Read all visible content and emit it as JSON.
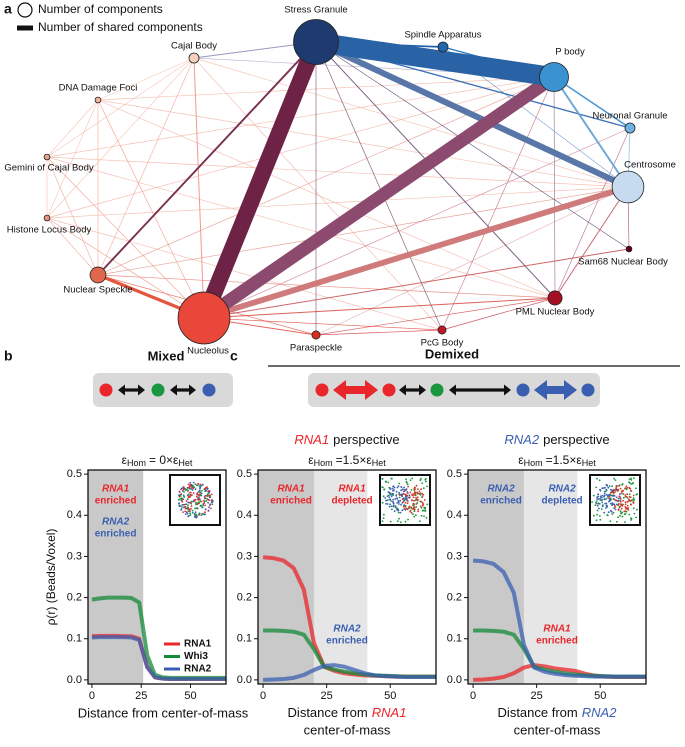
{
  "panel_labels": [
    "a",
    "b",
    "c"
  ],
  "network": {
    "legend": {
      "size": "Number of components",
      "width": "Number of shared components"
    },
    "nodes": [
      {
        "label": "Stress Granule",
        "size": 240,
        "color": "#1f3a6e"
      },
      {
        "label": "Spindle Apparatus",
        "size": 12,
        "color": "#2166ac"
      },
      {
        "label": "P body",
        "size": 100,
        "color": "#3a93d0"
      },
      {
        "label": "Neuronal Granule",
        "size": 12,
        "color": "#6fb3e0"
      },
      {
        "label": "Centrosome",
        "size": 120,
        "color": "#c6dbef"
      },
      {
        "label": "Sam68 Nuclear Body",
        "size": 4,
        "color": "#67001f"
      },
      {
        "label": "PML Nuclear Body",
        "size": 24,
        "color": "#a50f25"
      },
      {
        "label": "PcG Body",
        "size": 8,
        "color": "#c0182b"
      },
      {
        "label": "Paraspeckle",
        "size": 8,
        "color": "#d7301f"
      },
      {
        "label": "Nucleolus",
        "size": 320,
        "color": "#e8473a"
      },
      {
        "label": "Nuclear Speckle",
        "size": 30,
        "color": "#e0664c"
      },
      {
        "label": "Histone Locus Body",
        "size": 4,
        "color": "#e8927a"
      },
      {
        "label": "Gemini of Cajal Body",
        "size": 4,
        "color": "#eaa48e"
      },
      {
        "label": "DNA Damage Foci",
        "size": 4,
        "color": "#f0b49e"
      },
      {
        "label": "Cajal Body",
        "size": 12,
        "color": "#f6cfbf"
      }
    ],
    "edges": [
      {
        "source": 10,
        "target": 11,
        "weight": 1,
        "color": "#f0a090"
      },
      {
        "source": 10,
        "target": 12,
        "weight": 1,
        "color": "#f0a090"
      },
      {
        "source": 10,
        "target": 13,
        "weight": 1,
        "color": "#f0a090"
      },
      {
        "source": 10,
        "target": 14,
        "weight": 1,
        "color": "#f0a090"
      },
      {
        "source": 14,
        "target": 13,
        "weight": 1,
        "color": "#f4bca8"
      },
      {
        "source": 13,
        "target": 12,
        "weight": 1,
        "color": "#f4bca8"
      },
      {
        "source": 12,
        "target": 11,
        "weight": 1,
        "color": "#f4bca8"
      },
      {
        "source": 14,
        "target": 12,
        "weight": 1,
        "color": "#f4bca8"
      },
      {
        "source": 13,
        "target": 11,
        "weight": 1,
        "color": "#f4bca8"
      },
      {
        "source": 14,
        "target": 11,
        "weight": 1,
        "color": "#f4bca8"
      },
      {
        "source": 11,
        "target": 4,
        "weight": 1,
        "color": "#f0b0a0"
      },
      {
        "source": 12,
        "target": 2,
        "weight": 1,
        "color": "#f0b0a0"
      },
      {
        "source": 13,
        "target": 4,
        "weight": 1,
        "color": "#f0b0a0"
      },
      {
        "source": 12,
        "target": 6,
        "weight": 1,
        "color": "#f0b0a0"
      },
      {
        "source": 13,
        "target": 6,
        "weight": 1,
        "color": "#f0b0a0"
      },
      {
        "source": 11,
        "target": 7,
        "weight": 1,
        "color": "#f0b0a0"
      },
      {
        "source": 14,
        "target": 7,
        "weight": 1,
        "color": "#f0b0a0"
      },
      {
        "source": 12,
        "target": 4,
        "weight": 1,
        "color": "#f0b0a0"
      },
      {
        "source": 11,
        "target": 2,
        "weight": 1,
        "color": "#f0b0a0"
      },
      {
        "source": 13,
        "target": 2,
        "weight": 1,
        "color": "#f0b0a0"
      },
      {
        "source": 14,
        "target": 2,
        "weight": 1,
        "color": "#b0a0c0"
      },
      {
        "source": 14,
        "target": 4,
        "weight": 1,
        "color": "#f0b8a8"
      },
      {
        "source": 10,
        "target": 4,
        "weight": 1,
        "color": "#e09080"
      },
      {
        "source": 10,
        "target": 2,
        "weight": 1,
        "color": "#e09080"
      },
      {
        "source": 10,
        "target": 6,
        "weight": 1,
        "color": "#e07060"
      },
      {
        "source": 10,
        "target": 8,
        "weight": 1,
        "color": "#e05040"
      },
      {
        "source": 8,
        "target": 4,
        "weight": 1,
        "color": "#e0a0a0"
      },
      {
        "source": 8,
        "target": 6,
        "weight": 1,
        "color": "#d04040"
      },
      {
        "source": 7,
        "target": 2,
        "weight": 1,
        "color": "#c06070"
      },
      {
        "source": 6,
        "target": 7,
        "weight": 1,
        "color": "#c03040"
      },
      {
        "source": 7,
        "target": 8,
        "weight": 1,
        "color": "#d03040"
      },
      {
        "source": 6,
        "target": 2,
        "weight": 1,
        "color": "#8a5a8a"
      },
      {
        "source": 3,
        "target": 6,
        "weight": 1,
        "color": "#a06080"
      },
      {
        "source": 1,
        "target": 4,
        "weight": 1,
        "color": "#6090c8"
      },
      {
        "source": 4,
        "target": 5,
        "weight": 1,
        "color": "#a04050"
      },
      {
        "source": 9,
        "target": 7,
        "weight": 1,
        "color": "#e04035"
      },
      {
        "source": 9,
        "target": 3,
        "weight": 1,
        "color": "#c8708a"
      },
      {
        "source": 9,
        "target": 13,
        "weight": 1,
        "color": "#f09080"
      },
      {
        "source": 9,
        "target": 12,
        "weight": 1,
        "color": "#f09080"
      },
      {
        "source": 9,
        "target": 11,
        "weight": 1,
        "color": "#f09080"
      },
      {
        "source": 0,
        "target": 7,
        "weight": 1,
        "color": "#6a3a5e"
      },
      {
        "source": 0,
        "target": 8,
        "weight": 1,
        "color": "#6a3a5e"
      },
      {
        "source": 0,
        "target": 5,
        "weight": 1,
        "color": "#4a3260"
      },
      {
        "source": 0,
        "target": 14,
        "weight": 2,
        "color": "#7c7fae"
      },
      {
        "source": 0,
        "target": 6,
        "weight": 2,
        "color": "#5a3a62"
      },
      {
        "source": 9,
        "target": 6,
        "weight": 2,
        "color": "#d43a30"
      },
      {
        "source": 9,
        "target": 5,
        "weight": 2,
        "color": "#c04040"
      },
      {
        "source": 9,
        "target": 8,
        "weight": 2,
        "color": "#e04035"
      },
      {
        "source": 9,
        "target": 14,
        "weight": 2,
        "color": "#f08070"
      },
      {
        "source": 4,
        "target": 6,
        "weight": 2,
        "color": "#c04050"
      },
      {
        "source": 3,
        "target": 4,
        "weight": 2,
        "color": "#90c0e4"
      },
      {
        "source": 0,
        "target": 3,
        "weight": 3,
        "color": "#3a70b4"
      },
      {
        "source": 1,
        "target": 2,
        "weight": 3,
        "color": "#2878be"
      },
      {
        "source": 0,
        "target": 1,
        "weight": 4,
        "color": "#2060a8"
      },
      {
        "source": 2,
        "target": 3,
        "weight": 4,
        "color": "#4a9ad4"
      },
      {
        "source": 2,
        "target": 4,
        "weight": 5,
        "color": "#6aa8d8"
      },
      {
        "source": 0,
        "target": 10,
        "weight": 5,
        "color": "#7a3250"
      },
      {
        "source": 9,
        "target": 10,
        "weight": 9,
        "color": "#e4553d"
      },
      {
        "source": 9,
        "target": 4,
        "weight": 17,
        "color": "#cf7b7b"
      },
      {
        "source": 0,
        "target": 4,
        "weight": 18,
        "color": "#5877a8"
      },
      {
        "source": 9,
        "target": 2,
        "weight": 40,
        "color": "#8c4a6e"
      },
      {
        "source": 0,
        "target": 9,
        "weight": 50,
        "color": "#6e2346"
      },
      {
        "source": 0,
        "target": 2,
        "weight": 60,
        "color": "#2a62a6"
      }
    ]
  },
  "schematics": {
    "mixed": "Mixed",
    "demixed": "Demixed"
  },
  "chart_data": [
    {
      "type": "line",
      "title": [
        "ε",
        "Hom",
        "= 0×",
        "ε",
        "Het"
      ],
      "xlabel": [
        "Distance from center-of-mass"
      ],
      "ylabel": "ρ(r) (Beads/Voxel)",
      "x": [
        0,
        4,
        8,
        12,
        16,
        20,
        24,
        28,
        32,
        36,
        40,
        44,
        48,
        52,
        56,
        60,
        64,
        68
      ],
      "xlim": [
        -2,
        68
      ],
      "xticks": [
        0,
        25,
        50
      ],
      "ylim": [
        -0.01,
        0.51
      ],
      "yticks": [
        {
          "value": 0,
          "label": "0.0"
        },
        0.1,
        0.2,
        0.3,
        0.4,
        0.5
      ],
      "shaded": [
        {
          "from": -2,
          "to": 26,
          "color": "#c9c9c9"
        }
      ],
      "annotations": [
        {
          "lines": [
            "RNA1",
            "enriched"
          ],
          "color": "#e8262b"
        },
        {
          "lines": [
            "RNA2",
            "enriched"
          ],
          "color": "#3a5fb0"
        }
      ],
      "legend": "lower right",
      "series": [
        {
          "name": "RNA1",
          "color": "#e8262b",
          "values": [
            0.106,
            0.107,
            0.107,
            0.107,
            0.106,
            0.106,
            0.1,
            0.032,
            0.006,
            0.003,
            0.002,
            0.002,
            0.002,
            0.002,
            0.002,
            0.002,
            0.002,
            0.002
          ]
        },
        {
          "name": "Whi3",
          "color": "#138a36",
          "values": [
            0.195,
            0.198,
            0.2,
            0.2,
            0.2,
            0.199,
            0.188,
            0.06,
            0.012,
            0.006,
            0.005,
            0.005,
            0.005,
            0.005,
            0.005,
            0.005,
            0.005,
            0.005
          ]
        },
        {
          "name": "RNA2",
          "color": "#3a5fb0",
          "values": [
            0.103,
            0.104,
            0.104,
            0.104,
            0.104,
            0.103,
            0.097,
            0.031,
            0.006,
            0.003,
            0.002,
            0.002,
            0.002,
            0.002,
            0.002,
            0.002,
            0.002,
            0.002
          ]
        }
      ]
    },
    {
      "type": "line",
      "subtitle": [
        "RNA1",
        "perspective"
      ],
      "highlight_color": "#e8262b",
      "title": [
        "ε",
        "Hom",
        "=1.5×",
        "ε",
        "Het"
      ],
      "xlabel": [
        "Distance from",
        "RNA1",
        "center-of-mass"
      ],
      "x": [
        0,
        4,
        8,
        12,
        16,
        20,
        24,
        28,
        32,
        36,
        40,
        44,
        48,
        52,
        56,
        60,
        64,
        68
      ],
      "xlim": [
        -2,
        68
      ],
      "xticks": [
        0,
        25,
        50
      ],
      "ylim": [
        -0.01,
        0.51
      ],
      "yticks": [
        {
          "value": 0,
          "label": "0.0"
        },
        0.1,
        0.2,
        0.3,
        0.4,
        0.5
      ],
      "shaded": [
        {
          "from": -2,
          "to": 20,
          "color": "#c9c9c9"
        },
        {
          "from": 20,
          "to": 41,
          "color": "#e6e6e6"
        }
      ],
      "annotations": [
        {
          "lines": [
            "RNA1",
            "enriched"
          ],
          "color": "#e8262b"
        },
        {
          "lines": [
            "RNA1",
            "depleted"
          ],
          "color": "#e8262b"
        },
        {
          "lines": [
            "RNA2",
            "enriched"
          ],
          "color": "#3a5fb0"
        }
      ],
      "series": [
        {
          "name": "RNA1",
          "color": "#e8262b",
          "values": [
            0.298,
            0.296,
            0.29,
            0.272,
            0.22,
            0.09,
            0.032,
            0.022,
            0.016,
            0.013,
            0.011,
            0.01,
            0.009,
            0.008,
            0.008,
            0.008,
            0.008,
            0.008
          ]
        },
        {
          "name": "Whi3",
          "color": "#138a36",
          "values": [
            0.12,
            0.12,
            0.119,
            0.117,
            0.11,
            0.075,
            0.032,
            0.025,
            0.02,
            0.016,
            0.013,
            0.011,
            0.01,
            0.009,
            0.008,
            0.008,
            0.008,
            0.008
          ]
        },
        {
          "name": "RNA2",
          "color": "#3a5fb0",
          "values": [
            0,
            0.001,
            0.002,
            0.005,
            0.012,
            0.024,
            0.034,
            0.036,
            0.032,
            0.024,
            0.016,
            0.011,
            0.009,
            0.008,
            0.007,
            0.007,
            0.007,
            0.007
          ]
        }
      ]
    },
    {
      "type": "line",
      "subtitle": [
        "RNA2",
        "perspective"
      ],
      "highlight_color": "#3a5fb0",
      "title": [
        "ε",
        "Hom",
        "=1.5×",
        "ε",
        "Het"
      ],
      "xlabel": [
        "Distance from",
        "RNA2",
        "center-of-mass"
      ],
      "x": [
        0,
        4,
        8,
        12,
        16,
        20,
        24,
        28,
        32,
        36,
        40,
        44,
        48,
        52,
        56,
        60,
        64,
        68
      ],
      "xlim": [
        -2,
        68
      ],
      "xticks": [
        0,
        25,
        50
      ],
      "ylim": [
        -0.01,
        0.51
      ],
      "yticks": [
        {
          "value": 0,
          "label": "0.0"
        },
        0.1,
        0.2,
        0.3,
        0.4,
        0.5
      ],
      "shaded": [
        {
          "from": -2,
          "to": 20,
          "color": "#c9c9c9"
        },
        {
          "from": 20,
          "to": 41,
          "color": "#e6e6e6"
        }
      ],
      "annotations": [
        {
          "lines": [
            "RNA2",
            "enriched"
          ],
          "color": "#3a5fb0"
        },
        {
          "lines": [
            "RNA2",
            "depleted"
          ],
          "color": "#3a5fb0"
        },
        {
          "lines": [
            "RNA1",
            "enriched"
          ],
          "color": "#e8262b"
        }
      ],
      "series": [
        {
          "name": "RNA1",
          "color": "#e8262b",
          "values": [
            0,
            0.001,
            0.003,
            0.007,
            0.016,
            0.03,
            0.036,
            0.033,
            0.028,
            0.025,
            0.022,
            0.015,
            0.01,
            0.008,
            0.007,
            0.007,
            0.007,
            0.007
          ]
        },
        {
          "name": "Whi3",
          "color": "#138a36",
          "values": [
            0.12,
            0.12,
            0.119,
            0.117,
            0.11,
            0.075,
            0.032,
            0.025,
            0.02,
            0.016,
            0.013,
            0.011,
            0.01,
            0.009,
            0.008,
            0.008,
            0.008,
            0.008
          ]
        },
        {
          "name": "RNA2",
          "color": "#3a5fb0",
          "values": [
            0.29,
            0.288,
            0.282,
            0.262,
            0.212,
            0.085,
            0.03,
            0.02,
            0.015,
            0.012,
            0.01,
            0.009,
            0.008,
            0.008,
            0.008,
            0.008,
            0.008,
            0.008
          ]
        }
      ]
    }
  ]
}
